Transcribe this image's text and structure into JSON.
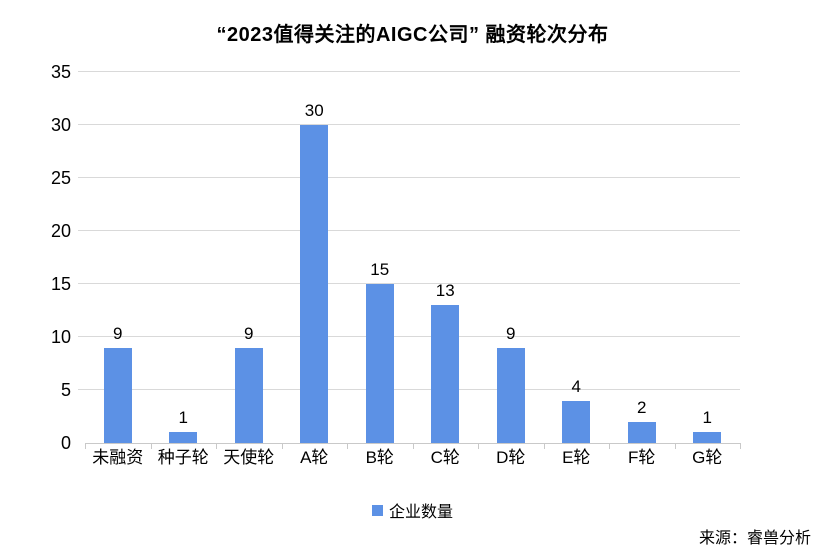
{
  "chart_data": {
    "type": "bar",
    "title": "“2023值得关注的AIGC公司” 融资轮次分布",
    "categories": [
      "未融资",
      "种子轮",
      "天使轮",
      "A轮",
      "B轮",
      "C轮",
      "D轮",
      "E轮",
      "F轮",
      "G轮"
    ],
    "values": [
      9,
      1,
      9,
      30,
      15,
      13,
      9,
      4,
      2,
      1
    ],
    "series_name": "企业数量",
    "xlabel": "",
    "ylabel": "",
    "ylim": [
      0,
      35
    ],
    "yticks": [
      0,
      5,
      10,
      15,
      20,
      25,
      30,
      35
    ],
    "grid": true,
    "legend_position": "bottom",
    "bar_color": "#5C91E5",
    "source": "来源：睿兽分析"
  }
}
